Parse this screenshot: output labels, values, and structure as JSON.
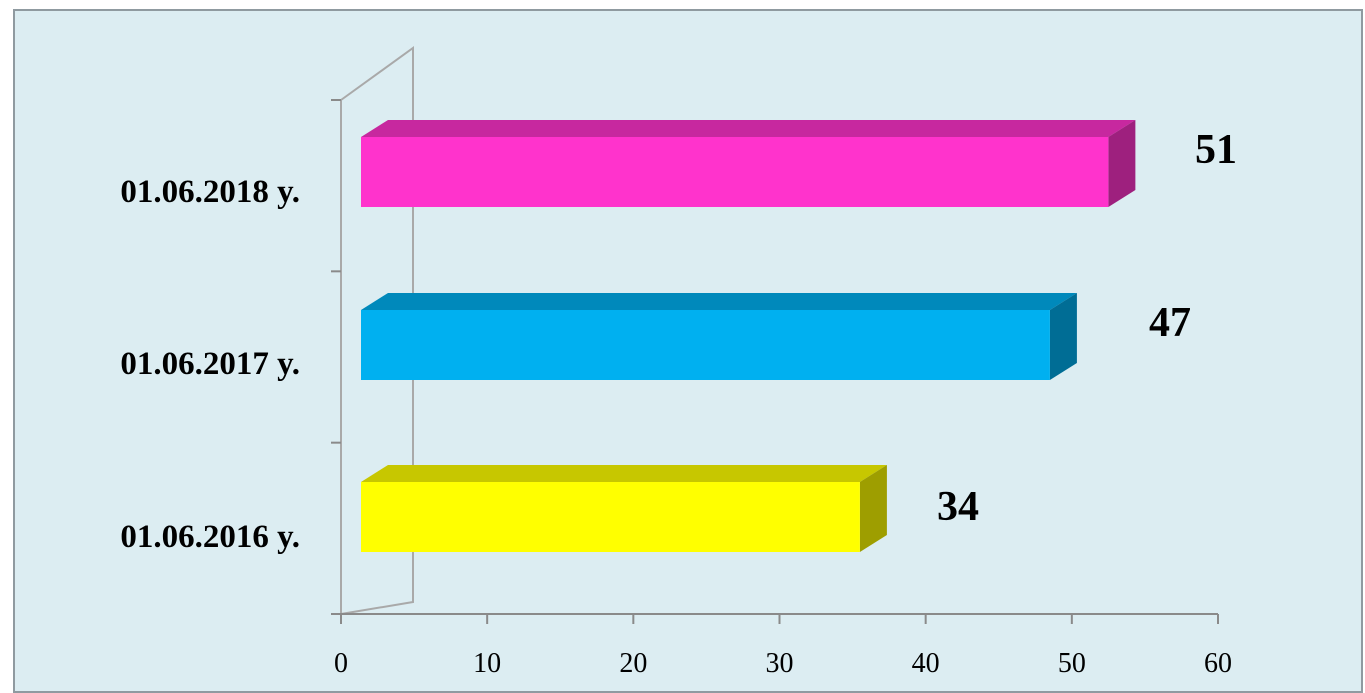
{
  "chart_data": {
    "type": "bar",
    "orientation": "horizontal",
    "categories": [
      "01.06.2016 y.",
      "01.06.2017 y.",
      "01.06.2018 y."
    ],
    "values": [
      34,
      47,
      51
    ],
    "data_labels": [
      "34",
      "47",
      "51"
    ],
    "bar_colors": [
      "#ffff00",
      "#00b0f0",
      "#ff33cc"
    ],
    "xlim": [
      0,
      60
    ],
    "x_ticks": [
      0,
      10,
      20,
      30,
      40,
      50,
      60
    ],
    "title": "",
    "xlabel": "",
    "ylabel": "",
    "grid": false,
    "legend": false,
    "style": "3d-clustered-bar"
  }
}
